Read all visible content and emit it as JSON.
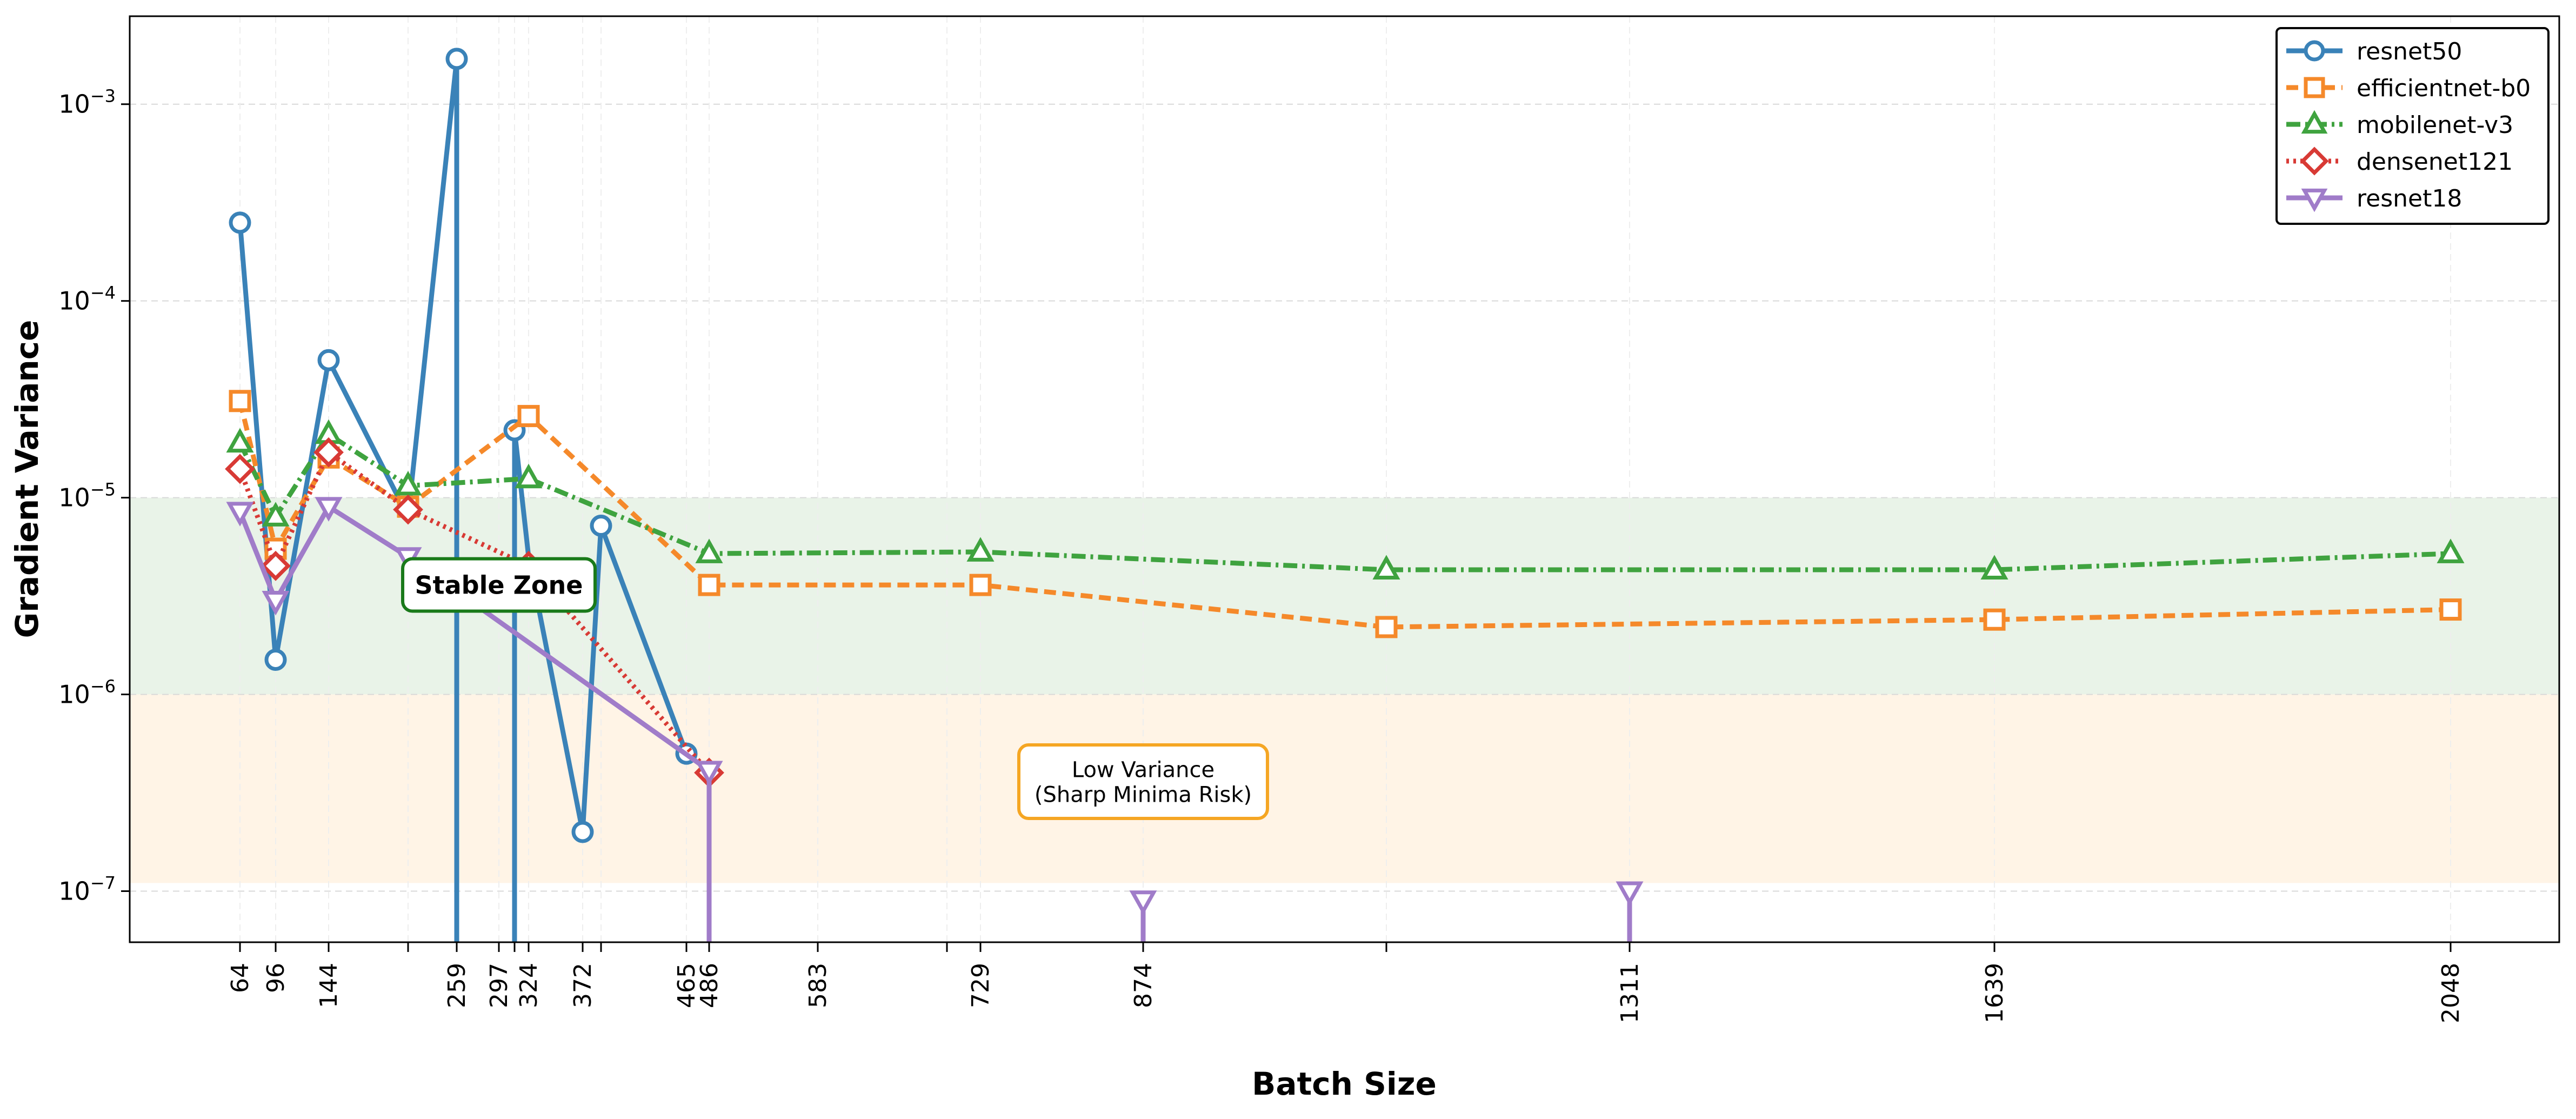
{
  "chart_data": {
    "type": "line",
    "title": "",
    "xlabel": "Batch Size",
    "ylabel": "Gradient Variance",
    "yscale": "log",
    "ylim": [
      5.5e-08,
      0.0028
    ],
    "xlim": [
      18,
      2095
    ],
    "grid": true,
    "legend_position": "top-right",
    "x_tick_values": [
      64,
      96,
      144,
      213,
      259,
      297,
      315,
      324,
      372,
      389,
      465,
      486,
      583,
      696,
      729,
      874,
      1092,
      1311,
      1639,
      2048
    ],
    "x_tick_labels": [
      "64",
      "96",
      "144",
      "",
      "259",
      "297",
      "",
      "324",
      "372",
      "",
      "465",
      "486",
      "583",
      "",
      "729",
      "874",
      "",
      "1311",
      "1639",
      "2048"
    ],
    "y_ticks": [
      {
        "value": 1e-07,
        "label": "10",
        "exp": "−7"
      },
      {
        "value": 1e-06,
        "label": "10",
        "exp": "−6"
      },
      {
        "value": 1e-05,
        "label": "10",
        "exp": "−5"
      },
      {
        "value": 0.0001,
        "label": "10",
        "exp": "−4"
      },
      {
        "value": 0.001,
        "label": "10",
        "exp": "−3"
      }
    ],
    "zones": [
      {
        "name": "stable",
        "ymin": 1e-06,
        "ymax": 1e-05,
        "color": "#e9f3e8"
      },
      {
        "name": "low-variance",
        "ymin": 1.1e-07,
        "ymax": 1e-06,
        "color": "#fff4e6"
      }
    ],
    "annotations": [
      {
        "name": "stable-zone",
        "text": [
          "Stable Zone"
        ],
        "x": 297,
        "y": 3.6e-06,
        "border": "#1a7a1a",
        "bold": true
      },
      {
        "name": "low-variance",
        "text": [
          "Low Variance",
          "(Sharp Minima Risk)"
        ],
        "x": 874,
        "y": 3.6e-07,
        "border": "#f5a623",
        "bold": false
      }
    ],
    "series": [
      {
        "name": "resnet50",
        "color": "#3a82b8",
        "dash": "",
        "marker": "circle",
        "x": [
          64,
          96,
          144,
          213,
          259,
          259,
          297,
          315,
          315,
          324,
          372,
          389,
          465
        ],
        "y": [
          0.00025,
          1.5e-06,
          5e-05,
          8e-06,
          0.0017,
          null,
          null,
          null,
          2.2e-05,
          5e-06,
          2e-07,
          7.2e-06,
          5e-07
        ],
        "markers_at": [
          0,
          1,
          2,
          4,
          8,
          10,
          11,
          12
        ],
        "drops": [
          259,
          315
        ]
      },
      {
        "name": "efficientnet-b0",
        "color": "#f5892a",
        "dash": "22 12",
        "marker": "square",
        "x": [
          64,
          96,
          144,
          213,
          324,
          486,
          729,
          1092,
          1639,
          2048
        ],
        "y": [
          3.1e-05,
          5.5e-06,
          1.6e-05,
          9e-06,
          2.6e-05,
          3.6e-06,
          3.6e-06,
          2.2e-06,
          2.4e-06,
          2.7e-06
        ],
        "markers_at": [
          0,
          1,
          2,
          3,
          4,
          5,
          6,
          7,
          8,
          9
        ],
        "drops": []
      },
      {
        "name": "mobilenet-v3",
        "color": "#3fa33f",
        "dash": "26 9 5 9",
        "marker": "triangle-up",
        "x": [
          64,
          96,
          144,
          213,
          324,
          486,
          729,
          1092,
          1639,
          2048
        ],
        "y": [
          1.9e-05,
          8e-06,
          2.1e-05,
          1.15e-05,
          1.25e-05,
          5.2e-06,
          5.3e-06,
          4.3e-06,
          4.3e-06,
          5.2e-06
        ],
        "markers_at": [
          0,
          1,
          2,
          3,
          4,
          5,
          6,
          7,
          8,
          9
        ],
        "drops": []
      },
      {
        "name": "densenet121",
        "color": "#d83a35",
        "dash": "5 8",
        "marker": "diamond",
        "x": [
          64,
          96,
          144,
          213,
          324,
          486
        ],
        "y": [
          1.4e-05,
          4.5e-06,
          1.7e-05,
          8.7e-06,
          4.5e-06,
          4e-07
        ],
        "markers_at": [
          0,
          1,
          2,
          3,
          4,
          5
        ],
        "drops": [
          486
        ]
      },
      {
        "name": "resnet18",
        "color": "#a07cc9",
        "dash": "",
        "marker": "triangle-down",
        "x": [
          64,
          96,
          144,
          213,
          486
        ],
        "y": [
          8.5e-06,
          3e-06,
          9e-06,
          5e-06,
          4.1e-07
        ],
        "markers_at": [
          0,
          1,
          2,
          3,
          4
        ],
        "drops": [
          486
        ],
        "stems": [
          {
            "x": 874,
            "y": 9e-08
          },
          {
            "x": 1311,
            "y": 1e-07
          }
        ]
      }
    ]
  }
}
